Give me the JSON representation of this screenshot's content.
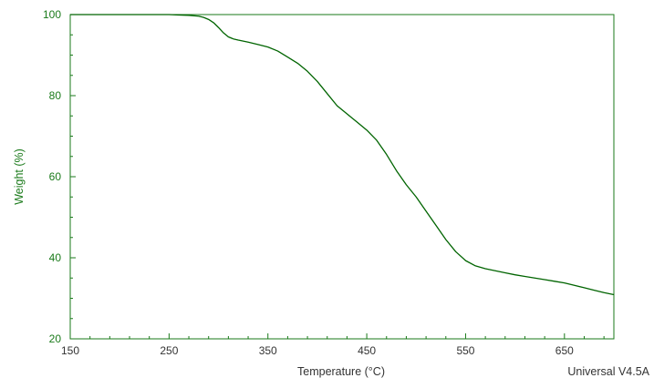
{
  "chart_data": {
    "type": "line",
    "xlabel": "Temperature (°C)",
    "ylabel": "Weight (%)",
    "xlim": [
      150,
      700
    ],
    "ylim": [
      20,
      100
    ],
    "x_ticks": [
      150,
      250,
      350,
      450,
      550,
      650
    ],
    "y_ticks": [
      20,
      40,
      60,
      80,
      100
    ],
    "grid": false,
    "series": [
      {
        "color": "#006400",
        "x": [
          150,
          200,
          250,
          260,
          270,
          280,
          285,
          290,
          295,
          300,
          305,
          310,
          315,
          320,
          330,
          340,
          350,
          360,
          370,
          380,
          390,
          400,
          410,
          420,
          430,
          440,
          450,
          460,
          470,
          480,
          490,
          500,
          510,
          520,
          530,
          540,
          550,
          560,
          570,
          580,
          590,
          600,
          610,
          620,
          630,
          640,
          650,
          660,
          670,
          680,
          690,
          700
        ],
        "y": [
          100,
          100,
          100,
          99.9,
          99.8,
          99.6,
          99.3,
          98.8,
          98.0,
          96.8,
          95.5,
          94.5,
          94.0,
          93.7,
          93.2,
          92.6,
          92.0,
          91.0,
          89.5,
          88.0,
          86.0,
          83.5,
          80.5,
          77.5,
          75.5,
          73.5,
          71.5,
          69.0,
          65.5,
          61.5,
          58.0,
          55.0,
          51.5,
          48.0,
          44.5,
          41.5,
          39.3,
          38.0,
          37.3,
          36.8,
          36.3,
          35.8,
          35.4,
          35.0,
          34.6,
          34.2,
          33.8,
          33.2,
          32.6,
          32.0,
          31.4,
          30.9
        ]
      }
    ]
  },
  "footer": {
    "version": "Universal V4.5A"
  }
}
